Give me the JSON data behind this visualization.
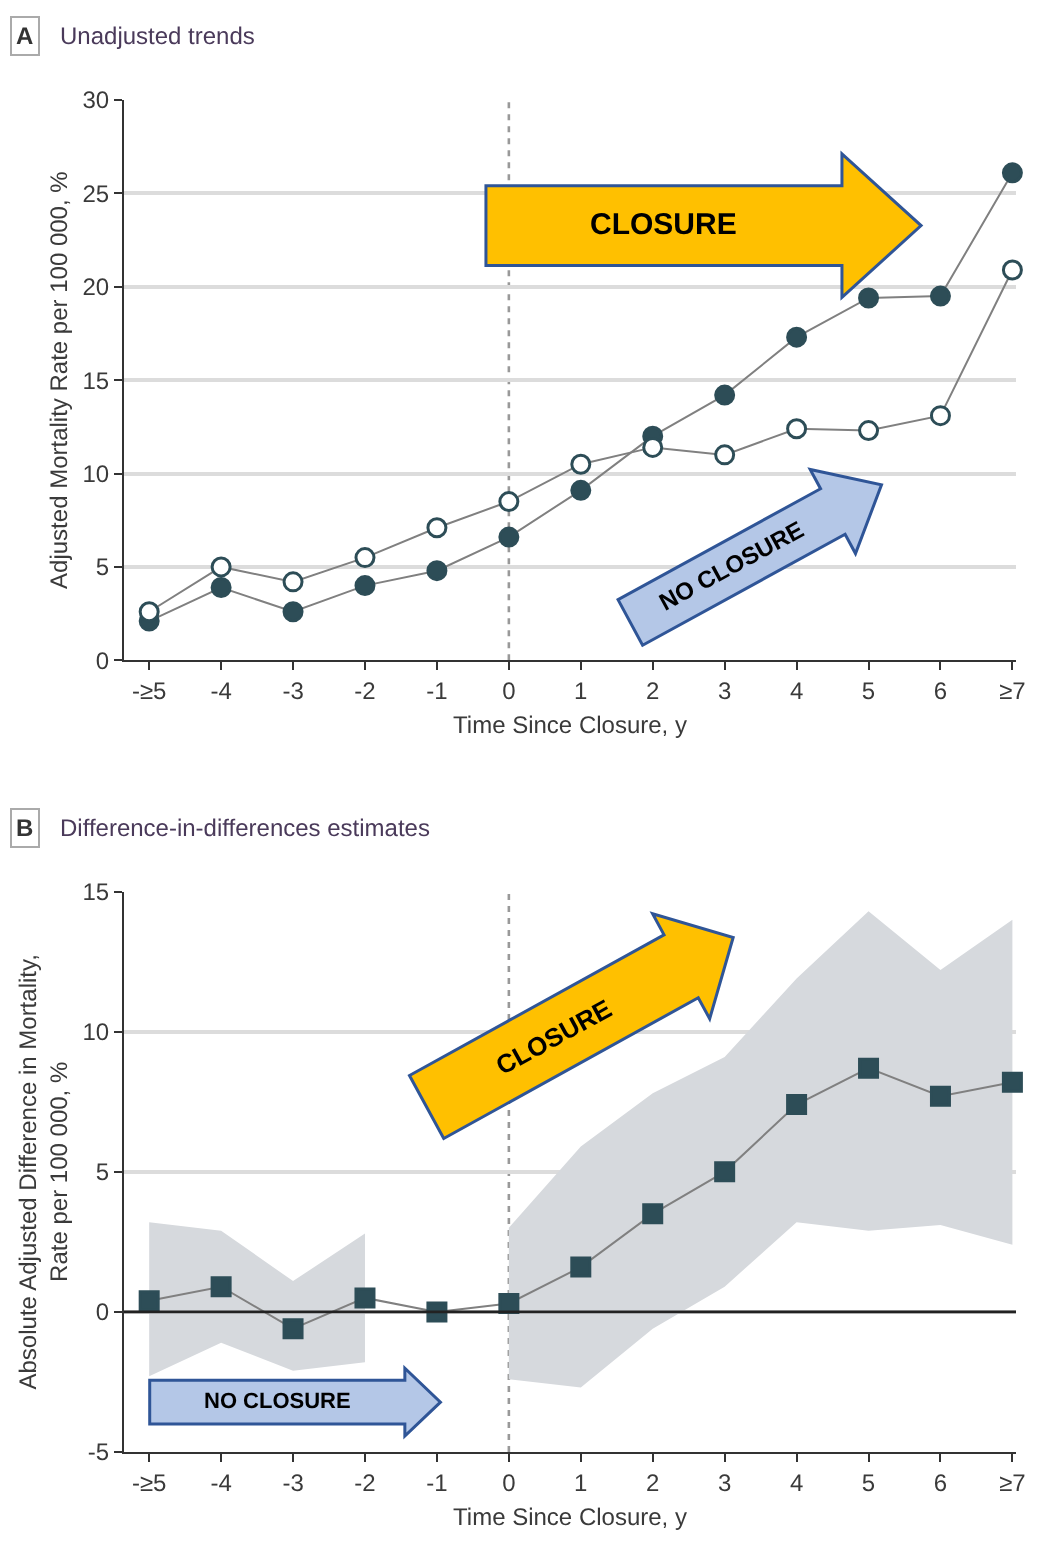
{
  "chart_data": [
    {
      "type": "line",
      "title": "A",
      "subtitle": "Unadjusted trends",
      "xlabel": "Time Since Closure, y",
      "ylabel": "Adjusted Mortality Rate per 100 000, %",
      "categories": [
        "-≥5",
        "-4",
        "-3",
        "-2",
        "-1",
        "0",
        "1",
        "2",
        "3",
        "4",
        "5",
        "6",
        "≥7"
      ],
      "series": [
        {
          "color": "#2d4d57",
          "values": [
            2.1,
            3.9,
            2.6,
            4.0,
            4.8,
            6.6,
            9.1,
            12.0,
            14.2,
            17.3,
            19.4,
            19.5,
            26.1
          ]
        },
        {
          "color": "#ffffff",
          "values": [
            2.6,
            5.0,
            4.2,
            5.5,
            7.1,
            8.5,
            10.5,
            11.4,
            11.0,
            12.4,
            12.3,
            13.1,
            20.9
          ]
        }
      ],
      "ylim": [
        0,
        30
      ],
      "yticks": [
        0,
        5,
        10,
        15,
        20,
        25,
        30
      ],
      "grid": "y",
      "marker": "circle",
      "ref_lines": [
        {
          "axis": "x",
          "value": "0",
          "line_style": "dotted",
          "color": "#999999"
        }
      ],
      "annotations": [
        "CLOSURE",
        "NO CLOSURE"
      ]
    },
    {
      "type": "line",
      "title": "B",
      "subtitle": "Difference-in-differences estimates",
      "xlabel": "Time Since Closure, y",
      "ylabel": "Absolute Adjusted Difference in Mortality,\nRate per 100 000, %",
      "categories": [
        "-≥5",
        "-4",
        "-3",
        "-2",
        "-1",
        "0",
        "1",
        "2",
        "3",
        "4",
        "5",
        "6",
        "≥7"
      ],
      "series": [
        {
          "color": "#2d4d57",
          "values": [
            0.4,
            0.9,
            -0.6,
            0.5,
            0.0,
            0.3,
            1.6,
            3.5,
            5.0,
            7.4,
            8.7,
            7.7,
            8.2
          ],
          "lower": [
            -2.3,
            -1.1,
            -2.1,
            -1.8,
            null,
            -2.4,
            -2.7,
            -0.6,
            0.9,
            3.2,
            2.9,
            3.1,
            2.4
          ],
          "upper": [
            3.2,
            2.9,
            1.1,
            2.8,
            null,
            3.0,
            5.9,
            7.8,
            9.1,
            11.9,
            14.3,
            12.2,
            14.0
          ]
        }
      ],
      "ylim": [
        -5,
        15
      ],
      "yticks": [
        -5,
        0,
        5,
        10,
        15
      ],
      "grid": "y",
      "marker": "square",
      "ref_lines": [
        {
          "axis": "x",
          "value": "0",
          "line_style": "dotted",
          "color": "#999999"
        },
        {
          "axis": "y",
          "value": 0,
          "line_style": "solid",
          "color": "#222222"
        }
      ],
      "annotations": [
        "CLOSURE",
        "NO CLOSURE"
      ]
    }
  ]
}
